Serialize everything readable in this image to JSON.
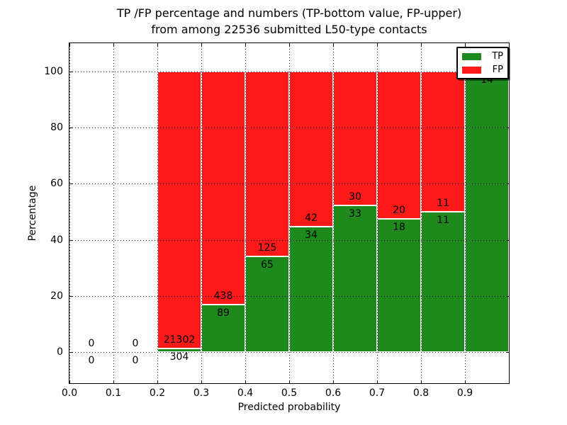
{
  "chart_data": {
    "type": "bar",
    "stacked": true,
    "title_line1": "TP /FP percentage and numbers (TP-bottom value, FP-upper)",
    "title_line2": "from among 22536 submitted L50-type contacts",
    "submitted_total": 22536,
    "xlabel": "Predicted probability",
    "ylabel": "Percentage",
    "xlim": [
      0,
      1.0
    ],
    "ylim": [
      -11,
      110
    ],
    "grid": true,
    "xtick_values": [
      0.0,
      0.1,
      0.2,
      0.3,
      0.4,
      0.5,
      0.6,
      0.7,
      0.8,
      0.9
    ],
    "xtick_labels": [
      "0.0",
      "0.1",
      "0.2",
      "0.3",
      "0.4",
      "0.5",
      "0.6",
      "0.7",
      "0.8",
      "0.9"
    ],
    "ytick_values": [
      0,
      20,
      40,
      60,
      80,
      100
    ],
    "ytick_labels": [
      "0",
      "20",
      "40",
      "60",
      "80",
      "100"
    ],
    "colors": {
      "tp": "#1e8a1e",
      "fp": "#fe1a18"
    },
    "legend": [
      {
        "label": "TP",
        "color": "#1e8a1e"
      },
      {
        "label": "FP",
        "color": "#fe1a18"
      }
    ],
    "legend_position": "upper right",
    "bins": [
      {
        "x0": 0.0,
        "x1": 0.1,
        "tp": 0,
        "fp": 0
      },
      {
        "x0": 0.1,
        "x1": 0.2,
        "tp": 0,
        "fp": 0
      },
      {
        "x0": 0.2,
        "x1": 0.3,
        "tp": 304,
        "fp": 21302
      },
      {
        "x0": 0.3,
        "x1": 0.4,
        "tp": 89,
        "fp": 438
      },
      {
        "x0": 0.4,
        "x1": 0.5,
        "tp": 65,
        "fp": 125
      },
      {
        "x0": 0.5,
        "x1": 0.6,
        "tp": 34,
        "fp": 42
      },
      {
        "x0": 0.6,
        "x1": 0.7,
        "tp": 33,
        "fp": 30
      },
      {
        "x0": 0.7,
        "x1": 0.8,
        "tp": 18,
        "fp": 20
      },
      {
        "x0": 0.8,
        "x1": 0.9,
        "tp": 11,
        "fp": 11
      },
      {
        "x0": 0.9,
        "x1": 1.0,
        "tp": 14,
        "fp": 0
      }
    ]
  }
}
